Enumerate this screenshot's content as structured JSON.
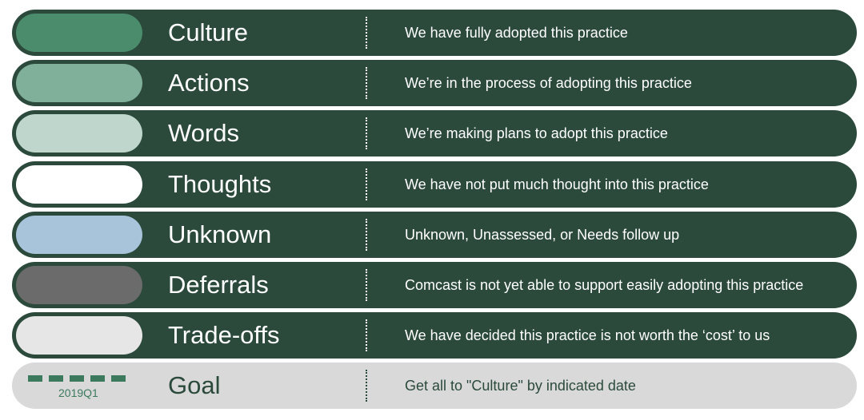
{
  "legend": {
    "rows": [
      {
        "name": "Culture",
        "description": "We have fully adopted this practice",
        "swatch_color": "#4a8c6c"
      },
      {
        "name": "Actions",
        "description": "We’re in the process of adopting this practice",
        "swatch_color": "#80b09a"
      },
      {
        "name": "Words",
        "description": "We’re making plans to adopt this practice",
        "swatch_color": "#bed6cb"
      },
      {
        "name": "Thoughts",
        "description": "We have not put much thought into this practice",
        "swatch_color": "#ffffff"
      },
      {
        "name": "Unknown",
        "description": "Unknown, Unassessed, or Needs follow up",
        "swatch_color": "#a7c4da"
      },
      {
        "name": "Deferrals",
        "description": "Comcast is not yet able to support easily adopting this practice",
        "swatch_color": "#6b6b6b"
      },
      {
        "name": "Trade-offs",
        "description": "We have decided this practice is not worth the ‘cost’ to us",
        "swatch_color": "#e6e6e6"
      }
    ],
    "goal": {
      "name": "Goal",
      "description": "Get all to \"Culture\" by indicated date",
      "marker_date": "2019Q1",
      "marker_color": "#3b7a5d"
    }
  },
  "colors": {
    "row_background": "#2b4a3c",
    "goal_background": "#d9d9d9"
  }
}
